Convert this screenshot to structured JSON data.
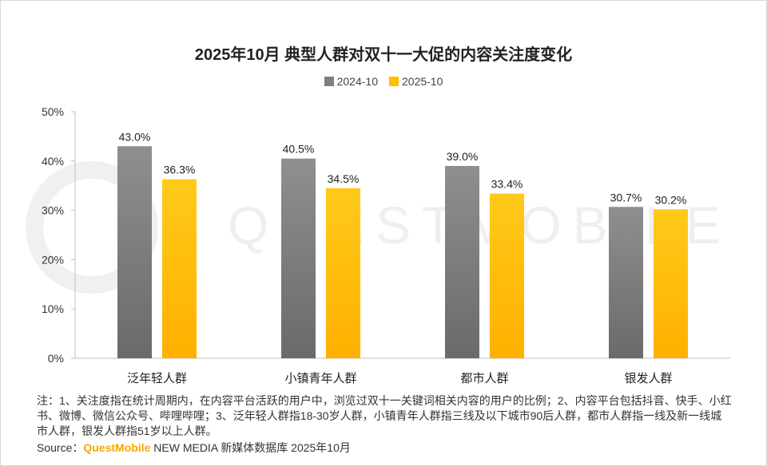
{
  "chart_data": {
    "type": "bar",
    "title": "2025年10月 典型人群对双十一大促的内容关注度变化",
    "categories": [
      "泛年轻人群",
      "小镇青年人群",
      "都市人群",
      "银发人群"
    ],
    "series": [
      {
        "name": "2024-10",
        "values": [
          43.0,
          40.5,
          39.0,
          30.7
        ],
        "labels": [
          "43.0%",
          "40.5%",
          "39.0%",
          "30.7%"
        ],
        "color": "#7f7f7f"
      },
      {
        "name": "2025-10",
        "values": [
          36.3,
          34.5,
          33.4,
          30.2
        ],
        "labels": [
          "36.3%",
          "34.5%",
          "33.4%",
          "30.2%"
        ],
        "color": "#ffc000"
      }
    ],
    "yticks": [
      0,
      10,
      20,
      30,
      40,
      50
    ],
    "ytick_labels": [
      "0%",
      "10%",
      "20%",
      "30%",
      "40%",
      "50%"
    ],
    "ylim": [
      0,
      50
    ],
    "legend_position": "top-center",
    "grid": false
  },
  "notes": "注：1、关注度指在统计周期内，在内容平台活跃的用户中，浏览过双十一关键词相关内容的用户的比例；2、内容平台包括抖音、快手、小红书、微博、微信公众号、哔哩哔哩；3、泛年轻人群指18-30岁人群，小镇青年人群指三线及以下城市90后人群，都市人群指一线及新一线城市人群，银发人群指51岁以上人群。",
  "source": {
    "prefix": "Source：",
    "brand": "QuestMobile",
    "suffix": " NEW MEDIA 新媒体数据库 2025年10月"
  },
  "watermark": "QUESTMOBILE"
}
